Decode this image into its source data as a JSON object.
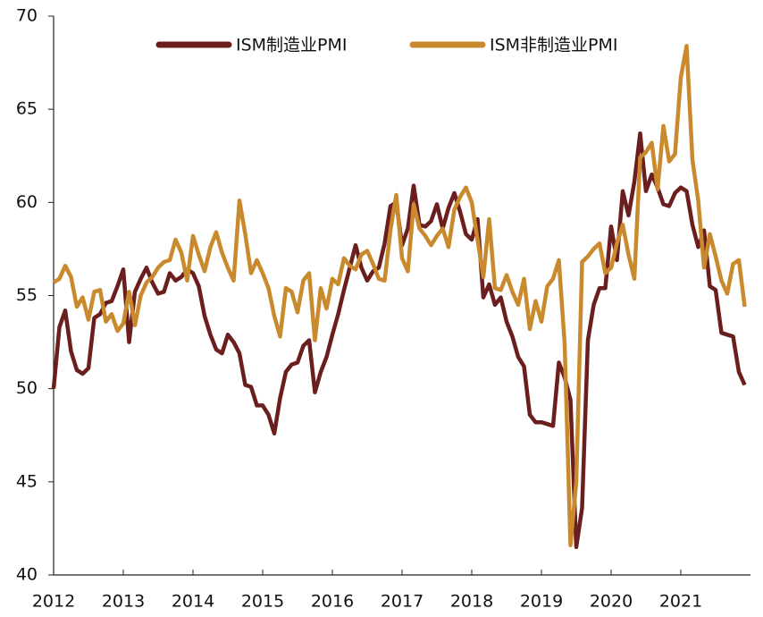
{
  "chart_data": {
    "type": "line",
    "x": [
      2012,
      2012.083,
      2012.167,
      2012.25,
      2012.333,
      2012.417,
      2012.5,
      2012.583,
      2012.667,
      2012.75,
      2012.833,
      2012.917,
      2013,
      2013.083,
      2013.167,
      2013.25,
      2013.333,
      2013.417,
      2013.5,
      2013.583,
      2013.667,
      2013.75,
      2013.833,
      2013.917,
      2014,
      2014.083,
      2014.167,
      2014.25,
      2014.333,
      2014.417,
      2014.5,
      2014.583,
      2014.667,
      2014.75,
      2014.833,
      2014.917,
      2015,
      2015.083,
      2015.167,
      2015.25,
      2015.333,
      2015.417,
      2015.5,
      2015.583,
      2015.667,
      2015.75,
      2015.833,
      2015.917,
      2016,
      2016.083,
      2016.167,
      2016.25,
      2016.333,
      2016.417,
      2016.5,
      2016.583,
      2016.667,
      2016.75,
      2016.833,
      2016.917,
      2017,
      2017.083,
      2017.167,
      2017.25,
      2017.333,
      2017.417,
      2017.5,
      2017.583,
      2017.667,
      2017.75,
      2017.833,
      2017.917,
      2018,
      2018.083,
      2018.167,
      2018.25,
      2018.333,
      2018.417,
      2018.5,
      2018.583,
      2018.667,
      2018.75,
      2018.833,
      2018.917,
      2019,
      2019.083,
      2019.167,
      2019.25,
      2019.333,
      2019.417,
      2019.5,
      2019.583,
      2019.667,
      2019.75,
      2019.833,
      2019.917,
      2020,
      2020.083,
      2020.167,
      2020.25,
      2020.333,
      2020.417,
      2020.5,
      2020.583,
      2020.667,
      2020.75,
      2020.833,
      2020.917,
      2021,
      2021.083,
      2021.167,
      2021.25,
      2021.333,
      2021.417,
      2021.5,
      2021.583,
      2021.667,
      2021.75,
      2021.833,
      2021.917
    ],
    "series": [
      {
        "name": "ISM制造业PMI",
        "color": "#6b1e1e",
        "values": [
          50.0,
          53.3,
          54.2,
          52.0,
          51.0,
          50.8,
          51.1,
          53.8,
          54.0,
          54.6,
          54.7,
          55.5,
          56.4,
          52.5,
          55.2,
          55.9,
          56.5,
          55.7,
          55.1,
          55.2,
          56.2,
          55.8,
          56.0,
          56.4,
          56.2,
          55.5,
          53.9,
          52.9,
          52.1,
          51.9,
          52.9,
          52.5,
          51.9,
          50.2,
          50.1,
          49.1,
          49.1,
          48.6,
          47.6,
          49.5,
          50.9,
          51.3,
          51.4,
          52.3,
          52.6,
          49.8,
          50.9,
          51.7,
          52.9,
          54.0,
          55.3,
          56.5,
          57.7,
          56.5,
          55.8,
          56.3,
          56.5,
          57.8,
          59.8,
          60.0,
          57.7,
          58.6,
          60.9,
          58.8,
          58.7,
          59.0,
          59.9,
          58.6,
          59.7,
          60.5,
          59.5,
          58.3,
          58.0,
          59.1,
          54.9,
          55.6,
          54.5,
          54.9,
          53.6,
          52.8,
          51.7,
          51.2,
          48.6,
          48.2,
          48.2,
          48.1,
          48.0,
          51.4,
          50.6,
          49.4,
          41.5,
          43.6,
          52.6,
          54.5,
          55.4,
          55.4,
          58.7,
          56.9,
          60.6,
          59.3,
          61.1,
          63.7,
          60.6,
          61.5,
          60.8,
          59.9,
          59.8,
          60.5,
          60.8,
          60.6,
          58.8,
          57.6,
          58.5,
          55.5,
          55.3,
          53.0,
          52.9,
          52.8,
          50.9,
          50.2
        ]
      },
      {
        "name": "ISM非制造业PMI",
        "color": "#c98a2e",
        "values": [
          55.7,
          55.9,
          56.6,
          56.0,
          54.4,
          54.9,
          53.7,
          55.2,
          55.3,
          53.6,
          54.0,
          53.1,
          53.5,
          55.2,
          53.4,
          55.0,
          55.7,
          56.0,
          56.5,
          56.8,
          56.9,
          58.0,
          57.3,
          55.8,
          58.2,
          57.2,
          56.3,
          57.6,
          58.4,
          57.3,
          56.5,
          55.8,
          60.1,
          58.3,
          56.2,
          56.9,
          56.2,
          55.4,
          53.9,
          52.8,
          55.4,
          55.2,
          54.1,
          55.8,
          56.2,
          52.6,
          55.4,
          54.3,
          55.9,
          55.6,
          57.0,
          56.6,
          56.4,
          57.2,
          57.4,
          56.7,
          55.9,
          55.8,
          58.5,
          60.4,
          57.0,
          56.3,
          59.9,
          58.6,
          58.2,
          57.7,
          58.2,
          58.6,
          57.6,
          59.6,
          60.3,
          60.8,
          60.0,
          58.0,
          56.0,
          59.1,
          55.4,
          55.3,
          56.1,
          55.2,
          54.5,
          55.9,
          53.2,
          54.7,
          53.6,
          55.5,
          55.9,
          56.9,
          52.4,
          41.6,
          45.0,
          56.8,
          57.1,
          57.5,
          57.8,
          56.2,
          56.5,
          57.8,
          58.8,
          57.2,
          55.9,
          62.4,
          62.7,
          63.2,
          60.7,
          64.1,
          62.2,
          62.6,
          66.7,
          68.4,
          62.3,
          60.1,
          56.5,
          58.3,
          57.1,
          55.8,
          55.1,
          56.7,
          56.9,
          54.4
        ]
      }
    ],
    "xlim": [
      2012,
      2022
    ],
    "xticks": [
      2012,
      2013,
      2014,
      2015,
      2016,
      2017,
      2018,
      2019,
      2020,
      2021
    ],
    "ylim": [
      40,
      70
    ],
    "yticks": [
      40,
      45,
      50,
      55,
      60,
      65,
      70
    ],
    "grid": false,
    "legend": "top"
  }
}
